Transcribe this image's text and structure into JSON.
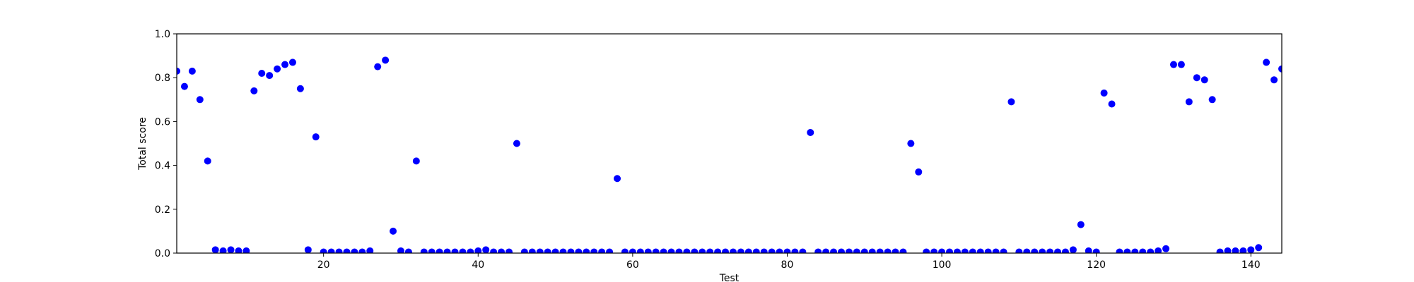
{
  "chart_data": {
    "type": "scatter",
    "title": "",
    "xlabel": "Test",
    "ylabel": "Total score",
    "xlim": [
      1,
      144
    ],
    "ylim": [
      0.0,
      1.0
    ],
    "xticks": [
      20,
      40,
      60,
      80,
      100,
      120,
      140
    ],
    "xtick_labels": [
      "20",
      "40",
      "60",
      "80",
      "100",
      "120",
      "140"
    ],
    "yticks": [
      0.0,
      0.2,
      0.4,
      0.6,
      0.8,
      1.0
    ],
    "ytick_labels": [
      "0.0",
      "0.2",
      "0.4",
      "0.6",
      "0.8",
      "1.0"
    ],
    "grid": false,
    "legend": "none",
    "marker_color": "#0000ff",
    "series": [
      {
        "x": [
          1,
          2,
          3,
          4,
          5,
          6,
          7,
          8,
          9,
          10,
          11,
          12,
          13,
          14,
          15,
          16,
          17,
          18,
          19,
          20,
          21,
          22,
          23,
          24,
          25,
          26,
          27,
          28,
          29,
          30,
          31,
          32,
          33,
          34,
          35,
          36,
          37,
          38,
          39,
          40,
          41,
          42,
          43,
          44,
          45,
          46,
          47,
          48,
          49,
          50,
          51,
          52,
          53,
          54,
          55,
          56,
          57,
          58,
          59,
          60,
          61,
          62,
          63,
          64,
          65,
          66,
          67,
          68,
          69,
          70,
          71,
          72,
          73,
          74,
          75,
          76,
          77,
          78,
          79,
          80,
          81,
          82,
          83,
          84,
          85,
          86,
          87,
          88,
          89,
          90,
          91,
          92,
          93,
          94,
          95,
          96,
          97,
          98,
          99,
          100,
          101,
          102,
          103,
          104,
          105,
          106,
          107,
          108,
          109,
          110,
          111,
          112,
          113,
          114,
          115,
          116,
          117,
          118,
          119,
          120,
          121,
          122,
          123,
          124,
          125,
          126,
          127,
          128,
          129,
          130,
          131,
          132,
          133,
          134,
          135,
          136,
          137,
          138,
          139,
          140,
          141,
          142,
          143,
          144
        ],
        "y": [
          0.83,
          0.76,
          0.83,
          0.7,
          0.42,
          0.015,
          0.01,
          0.015,
          0.01,
          0.01,
          0.74,
          0.82,
          0.81,
          0.84,
          0.86,
          0.87,
          0.75,
          0.015,
          0.53,
          0.005,
          0.005,
          0.005,
          0.005,
          0.005,
          0.005,
          0.01,
          0.85,
          0.88,
          0.1,
          0.01,
          0.005,
          0.42,
          0.005,
          0.005,
          0.005,
          0.005,
          0.005,
          0.005,
          0.005,
          0.01,
          0.015,
          0.005,
          0.005,
          0.005,
          0.5,
          0.005,
          0.005,
          0.005,
          0.005,
          0.005,
          0.005,
          0.005,
          0.005,
          0.005,
          0.005,
          0.005,
          0.005,
          0.34,
          0.005,
          0.005,
          0.005,
          0.005,
          0.005,
          0.005,
          0.005,
          0.005,
          0.005,
          0.005,
          0.005,
          0.005,
          0.005,
          0.005,
          0.005,
          0.005,
          0.005,
          0.005,
          0.005,
          0.005,
          0.005,
          0.005,
          0.005,
          0.005,
          0.55,
          0.005,
          0.005,
          0.005,
          0.005,
          0.005,
          0.005,
          0.005,
          0.005,
          0.005,
          0.005,
          0.005,
          0.005,
          0.5,
          0.37,
          0.005,
          0.005,
          0.005,
          0.005,
          0.005,
          0.005,
          0.005,
          0.005,
          0.005,
          0.005,
          0.005,
          0.69,
          0.005,
          0.005,
          0.005,
          0.005,
          0.005,
          0.005,
          0.005,
          0.015,
          0.13,
          0.01,
          0.005,
          0.73,
          0.68,
          0.005,
          0.005,
          0.005,
          0.005,
          0.005,
          0.01,
          0.02,
          0.86,
          0.86,
          0.69,
          0.8,
          0.79,
          0.7,
          0.005,
          0.01,
          0.01,
          0.01,
          0.015,
          0.025,
          0.87,
          0.79,
          0.84
        ]
      }
    ]
  }
}
